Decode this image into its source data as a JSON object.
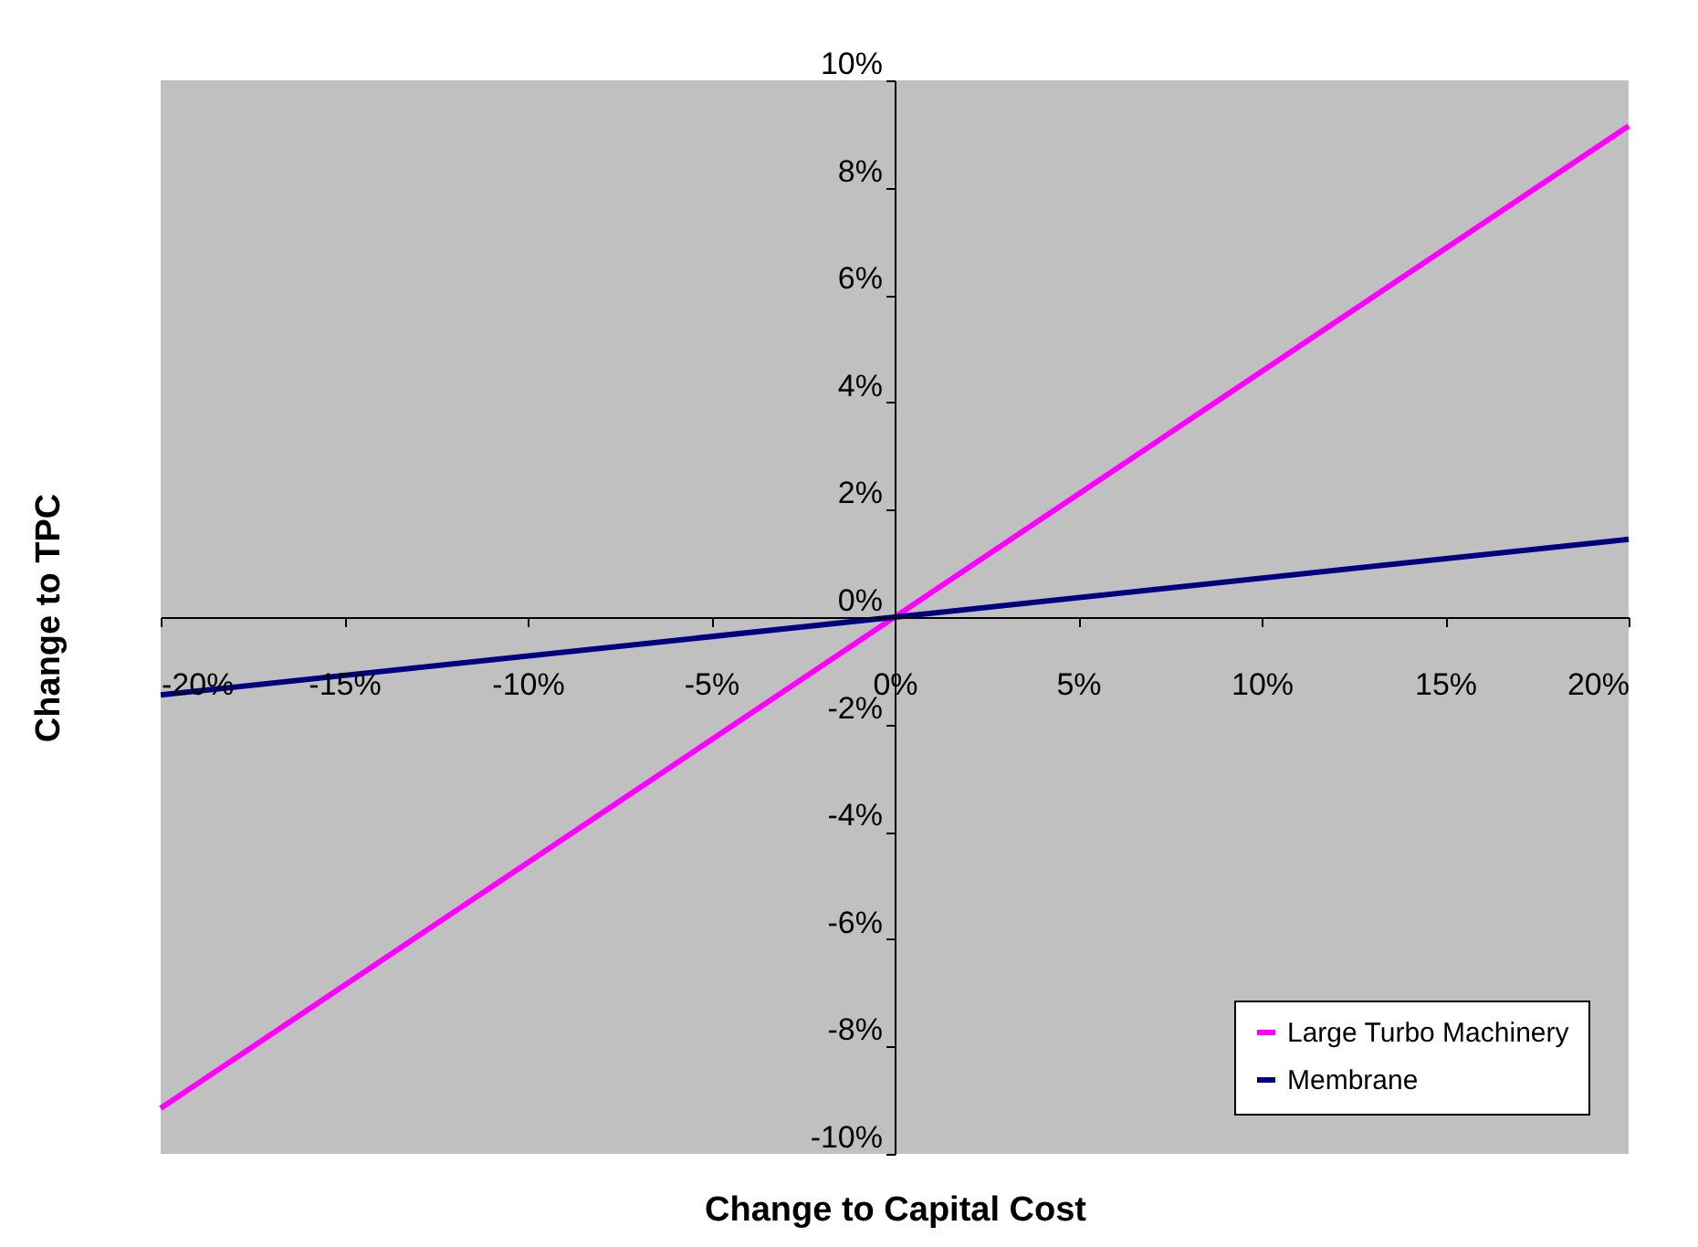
{
  "chart_data": {
    "type": "line",
    "xlabel": "Change to Capital Cost",
    "ylabel": "Change to TPC",
    "x": [
      -20,
      0,
      20
    ],
    "series": [
      {
        "name": "Large Turbo Machinery",
        "color": "#ff00ff",
        "values": [
          -9.15,
          0,
          9.15
        ]
      },
      {
        "name": "Membrane",
        "color": "#000080",
        "values": [
          -1.45,
          0,
          1.45
        ]
      }
    ],
    "xlim": [
      -20,
      20
    ],
    "xticks": [
      {
        "value": -20,
        "label": "-20%"
      },
      {
        "value": -15,
        "label": "-15%"
      },
      {
        "value": -10,
        "label": "-10%"
      },
      {
        "value": -5,
        "label": "-5%"
      },
      {
        "value": 0,
        "label": "0%"
      },
      {
        "value": 5,
        "label": "5%"
      },
      {
        "value": 10,
        "label": "10%"
      },
      {
        "value": 15,
        "label": "15%"
      },
      {
        "value": 20,
        "label": "20%"
      }
    ],
    "ylim": [
      -10,
      10
    ],
    "yticks": [
      {
        "value": -10,
        "label": "-10%"
      },
      {
        "value": -8,
        "label": "-8%"
      },
      {
        "value": -6,
        "label": "-6%"
      },
      {
        "value": -4,
        "label": "-4%"
      },
      {
        "value": -2,
        "label": "-2%"
      },
      {
        "value": 0,
        "label": "0%"
      },
      {
        "value": 2,
        "label": "2%"
      },
      {
        "value": 4,
        "label": "4%"
      },
      {
        "value": 6,
        "label": "6%"
      },
      {
        "value": 8,
        "label": "8%"
      },
      {
        "value": 10,
        "label": "10%"
      }
    ],
    "grid": false,
    "legend": "bottom right",
    "marker": "none",
    "line_style": "solid"
  }
}
